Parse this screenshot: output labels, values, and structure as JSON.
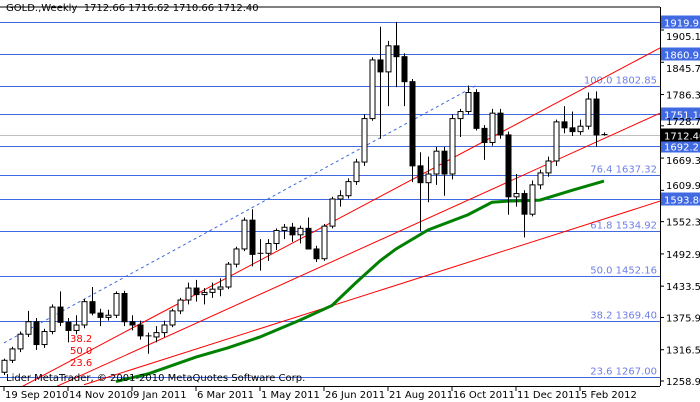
{
  "header": {
    "symbol": "GOLD.,Weekly",
    "ohlc": "1712.66 1716.62 1710.66 1712.40"
  },
  "copyright": "Lider MetaTrader, © 2001-2010 MetaQuotes Software Corp.",
  "colors": {
    "background": "#ffffff",
    "candle_bull": "#ffffff",
    "candle_bear": "#000000",
    "level_line": "#4169e1",
    "fib_label": "#6f7fe8",
    "trend_line": "#ff0000",
    "moving_average": "#008000",
    "bid_line": "#c0c0c0"
  },
  "chart_data": {
    "type": "candlestick",
    "symbol": "GOLD.",
    "timeframe": "Weekly",
    "ylim": [
      1252,
      1925
    ],
    "grid": false,
    "y_ticks": [
      "1905.10",
      "1845.70",
      "1786.30",
      "1728.70",
      "1669.30",
      "1609.90",
      "1552.30",
      "1492.90",
      "1433.50",
      "1375.90",
      "1316.50",
      "1258.90"
    ],
    "x_ticks": [
      "19 Sep 2010",
      "14 Nov 2010",
      "9 Jan 2011",
      "6 Mar 2011",
      "1 May 2011",
      "26 Jun 2011",
      "21 Aug 2011",
      "16 Oct 2011",
      "11 Dec 2011",
      "5 Feb 2012"
    ],
    "candles_ohlc_from_19_Sep_2010": [
      [
        1275,
        1300,
        1270,
        1297
      ],
      [
        1297,
        1322,
        1292,
        1318
      ],
      [
        1318,
        1350,
        1312,
        1345
      ],
      [
        1345,
        1388,
        1340,
        1368
      ],
      [
        1368,
        1375,
        1316,
        1326
      ],
      [
        1326,
        1355,
        1320,
        1350
      ],
      [
        1350,
        1400,
        1345,
        1395
      ],
      [
        1395,
        1424,
        1360,
        1367
      ],
      [
        1367,
        1375,
        1330,
        1352
      ],
      [
        1352,
        1380,
        1345,
        1362
      ],
      [
        1362,
        1410,
        1356,
        1405
      ],
      [
        1405,
        1432,
        1380,
        1384
      ],
      [
        1384,
        1392,
        1360,
        1376
      ],
      [
        1376,
        1390,
        1370,
        1380
      ],
      [
        1380,
        1424,
        1375,
        1420
      ],
      [
        1420,
        1425,
        1360,
        1368
      ],
      [
        1368,
        1380,
        1352,
        1362
      ],
      [
        1362,
        1370,
        1335,
        1342
      ],
      [
        1342,
        1348,
        1309,
        1340
      ],
      [
        1340,
        1360,
        1330,
        1348
      ],
      [
        1348,
        1370,
        1340,
        1362
      ],
      [
        1362,
        1392,
        1358,
        1388
      ],
      [
        1388,
        1412,
        1382,
        1408
      ],
      [
        1408,
        1440,
        1400,
        1430
      ],
      [
        1430,
        1445,
        1405,
        1418
      ],
      [
        1418,
        1430,
        1400,
        1422
      ],
      [
        1422,
        1440,
        1412,
        1428
      ],
      [
        1428,
        1448,
        1415,
        1432
      ],
      [
        1432,
        1478,
        1428,
        1474
      ],
      [
        1474,
        1506,
        1468,
        1502
      ],
      [
        1502,
        1560,
        1498,
        1555
      ],
      [
        1555,
        1575,
        1470,
        1492
      ],
      [
        1492,
        1520,
        1462,
        1494
      ],
      [
        1494,
        1520,
        1480,
        1512
      ],
      [
        1512,
        1540,
        1500,
        1536
      ],
      [
        1536,
        1548,
        1520,
        1542
      ],
      [
        1542,
        1550,
        1515,
        1528
      ],
      [
        1528,
        1545,
        1512,
        1540
      ],
      [
        1540,
        1560,
        1515,
        1502
      ],
      [
        1502,
        1508,
        1478,
        1484
      ],
      [
        1484,
        1548,
        1480,
        1544
      ],
      [
        1544,
        1598,
        1540,
        1594
      ],
      [
        1594,
        1610,
        1580,
        1600
      ],
      [
        1600,
        1632,
        1595,
        1626
      ],
      [
        1626,
        1668,
        1620,
        1662
      ],
      [
        1662,
        1750,
        1655,
        1742
      ],
      [
        1742,
        1855,
        1738,
        1850
      ],
      [
        1850,
        1911,
        1705,
        1828
      ],
      [
        1828,
        1885,
        1765,
        1876
      ],
      [
        1876,
        1920,
        1800,
        1856
      ],
      [
        1856,
        1862,
        1765,
        1810
      ],
      [
        1810,
        1815,
        1625,
        1655
      ],
      [
        1655,
        1680,
        1535,
        1624
      ],
      [
        1624,
        1672,
        1588,
        1640
      ],
      [
        1640,
        1690,
        1620,
        1682
      ],
      [
        1682,
        1690,
        1600,
        1640
      ],
      [
        1640,
        1750,
        1630,
        1742
      ],
      [
        1742,
        1760,
        1708,
        1755
      ],
      [
        1755,
        1803,
        1750,
        1790
      ],
      [
        1790,
        1796,
        1720,
        1724
      ],
      [
        1724,
        1730,
        1666,
        1698
      ],
      [
        1698,
        1760,
        1692,
        1752
      ],
      [
        1752,
        1760,
        1705,
        1712
      ],
      [
        1712,
        1718,
        1565,
        1598
      ],
      [
        1598,
        1640,
        1580,
        1604
      ],
      [
        1604,
        1610,
        1523,
        1566
      ],
      [
        1566,
        1628,
        1562,
        1620
      ],
      [
        1620,
        1648,
        1612,
        1642
      ],
      [
        1642,
        1672,
        1635,
        1664
      ],
      [
        1664,
        1740,
        1655,
        1736
      ],
      [
        1736,
        1765,
        1715,
        1725
      ],
      [
        1725,
        1755,
        1710,
        1718
      ],
      [
        1718,
        1740,
        1712,
        1728
      ],
      [
        1728,
        1790,
        1722,
        1778
      ],
      [
        1778,
        1792,
        1690,
        1712
      ],
      [
        1712.66,
        1716.62,
        1710.66,
        1712.4
      ]
    ],
    "moving_average_points": [
      {
        "week": 14,
        "value": 1258
      },
      {
        "week": 18,
        "value": 1272
      },
      {
        "week": 24,
        "value": 1303
      },
      {
        "week": 28,
        "value": 1320
      },
      {
        "week": 32,
        "value": 1340
      },
      {
        "week": 37,
        "value": 1371
      },
      {
        "week": 41,
        "value": 1398
      },
      {
        "week": 44,
        "value": 1440
      },
      {
        "week": 47,
        "value": 1480
      },
      {
        "week": 49,
        "value": 1502
      },
      {
        "week": 53,
        "value": 1537
      },
      {
        "week": 58,
        "value": 1565
      },
      {
        "week": 61,
        "value": 1588
      },
      {
        "week": 63,
        "value": 1590
      },
      {
        "week": 67,
        "value": 1592
      },
      {
        "week": 71,
        "value": 1610
      },
      {
        "week": 75,
        "value": 1627
      }
    ],
    "price_levels": [
      {
        "price": 1919.91,
        "label": "1919.91"
      },
      {
        "price": 1860.95,
        "label": "1860.95"
      },
      {
        "price": 1751.16,
        "label": "1751.16"
      },
      {
        "price": 1692.21,
        "label": "1692.21"
      },
      {
        "price": 1593.8,
        "label": "1593.80"
      }
    ],
    "fibonacci": [
      {
        "level": "100.0",
        "price": 1802.85
      },
      {
        "level": "76.4",
        "price": 1637.32
      },
      {
        "level": "61.8",
        "price": 1534.92
      },
      {
        "level": "50.0",
        "price": 1452.16
      },
      {
        "level": "38.2",
        "price": 1369.4
      },
      {
        "level": "23.6",
        "price": 1267.0
      }
    ],
    "fib_trend_line": {
      "from": {
        "week": 0,
        "price": 1329
      },
      "to": {
        "week": 59,
        "price": 1802.85
      }
    },
    "trend_lines": [
      {
        "from": {
          "week": 0,
          "price": 1231
        },
        "to": {
          "week": 82,
          "price": 1872
        }
      },
      {
        "from": {
          "week": 0,
          "price": 1205
        },
        "to": {
          "week": 82,
          "price": 1752
        }
      },
      {
        "from": {
          "week": 10,
          "price": 1252
        },
        "to": {
          "week": 82,
          "price": 1590
        }
      }
    ],
    "fan_labels": [
      "38.2",
      "50.0",
      "23.6"
    ],
    "bid": {
      "price": 1712.4,
      "label": "1712.40"
    }
  }
}
